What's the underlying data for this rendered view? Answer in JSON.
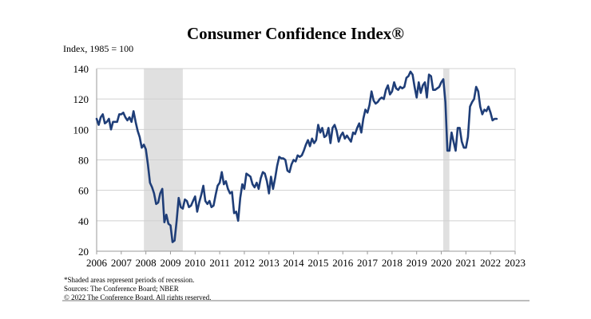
{
  "chart_data": {
    "type": "line",
    "title": "Consumer Confidence Index®",
    "ylabel": "Index, 1985 = 100",
    "xlabel": "",
    "ylim": [
      20,
      140
    ],
    "xlim": [
      2006,
      2023
    ],
    "yticks": [
      20,
      40,
      60,
      80,
      100,
      120,
      140
    ],
    "xticks": [
      "2006",
      "2007",
      "2008",
      "2009",
      "2010",
      "2011",
      "2012",
      "2013",
      "2014",
      "2015",
      "2016",
      "2017",
      "2018",
      "2019",
      "2020",
      "2021",
      "2022",
      "2023"
    ],
    "grid": "horizontal",
    "legend": "none",
    "line_color": "#1f3e78",
    "recession_color": "#e0e0e0",
    "recessions": [
      {
        "start": 2007.92,
        "end": 2009.5
      },
      {
        "start": 2020.08,
        "end": 2020.33
      }
    ],
    "series": [
      {
        "name": "Consumer Confidence Index",
        "start": 2006.0,
        "step_months": 1,
        "values": [
          107,
          103,
          108,
          110,
          104,
          105,
          107,
          100,
          105,
          105,
          105,
          110,
          110,
          111,
          108,
          106,
          108,
          105,
          112,
          105,
          99,
          95,
          88,
          90,
          87,
          77,
          65,
          62,
          58,
          51,
          52,
          58,
          61,
          39,
          44,
          38,
          37,
          26,
          27,
          40,
          55,
          49,
          48,
          54,
          53,
          49,
          50,
          53,
          56,
          46,
          52,
          57,
          63,
          53,
          51,
          53,
          49,
          50,
          57,
          63,
          65,
          72,
          64,
          66,
          61,
          58,
          59,
          45,
          46,
          40,
          55,
          64,
          61,
          71,
          70,
          69,
          64,
          62,
          65,
          61,
          68,
          72,
          71,
          66,
          58,
          69,
          61,
          68,
          76,
          82,
          81,
          81,
          80,
          73,
          72,
          77,
          80,
          79,
          83,
          82,
          83,
          86,
          90,
          93,
          89,
          94,
          91,
          93,
          103,
          98,
          101,
          95,
          96,
          101,
          91,
          101,
          103,
          99,
          92,
          96,
          98,
          94,
          96,
          94,
          92,
          98,
          97,
          101,
          104,
          98,
          107,
          113,
          111,
          116,
          125,
          119,
          117,
          118,
          120,
          121,
          120,
          126,
          129,
          123,
          125,
          131,
          127,
          126,
          128,
          127,
          128,
          134,
          135,
          138,
          136,
          128,
          121,
          131,
          124,
          129,
          131,
          121,
          136,
          135,
          126,
          126,
          127,
          128,
          131,
          133,
          118,
          86,
          86,
          98,
          92,
          86,
          101,
          101,
          92,
          88,
          88,
          95,
          115,
          118,
          120,
          128,
          125,
          115,
          110,
          113,
          112,
          115,
          111,
          106,
          107,
          107
        ]
      }
    ]
  }
}
